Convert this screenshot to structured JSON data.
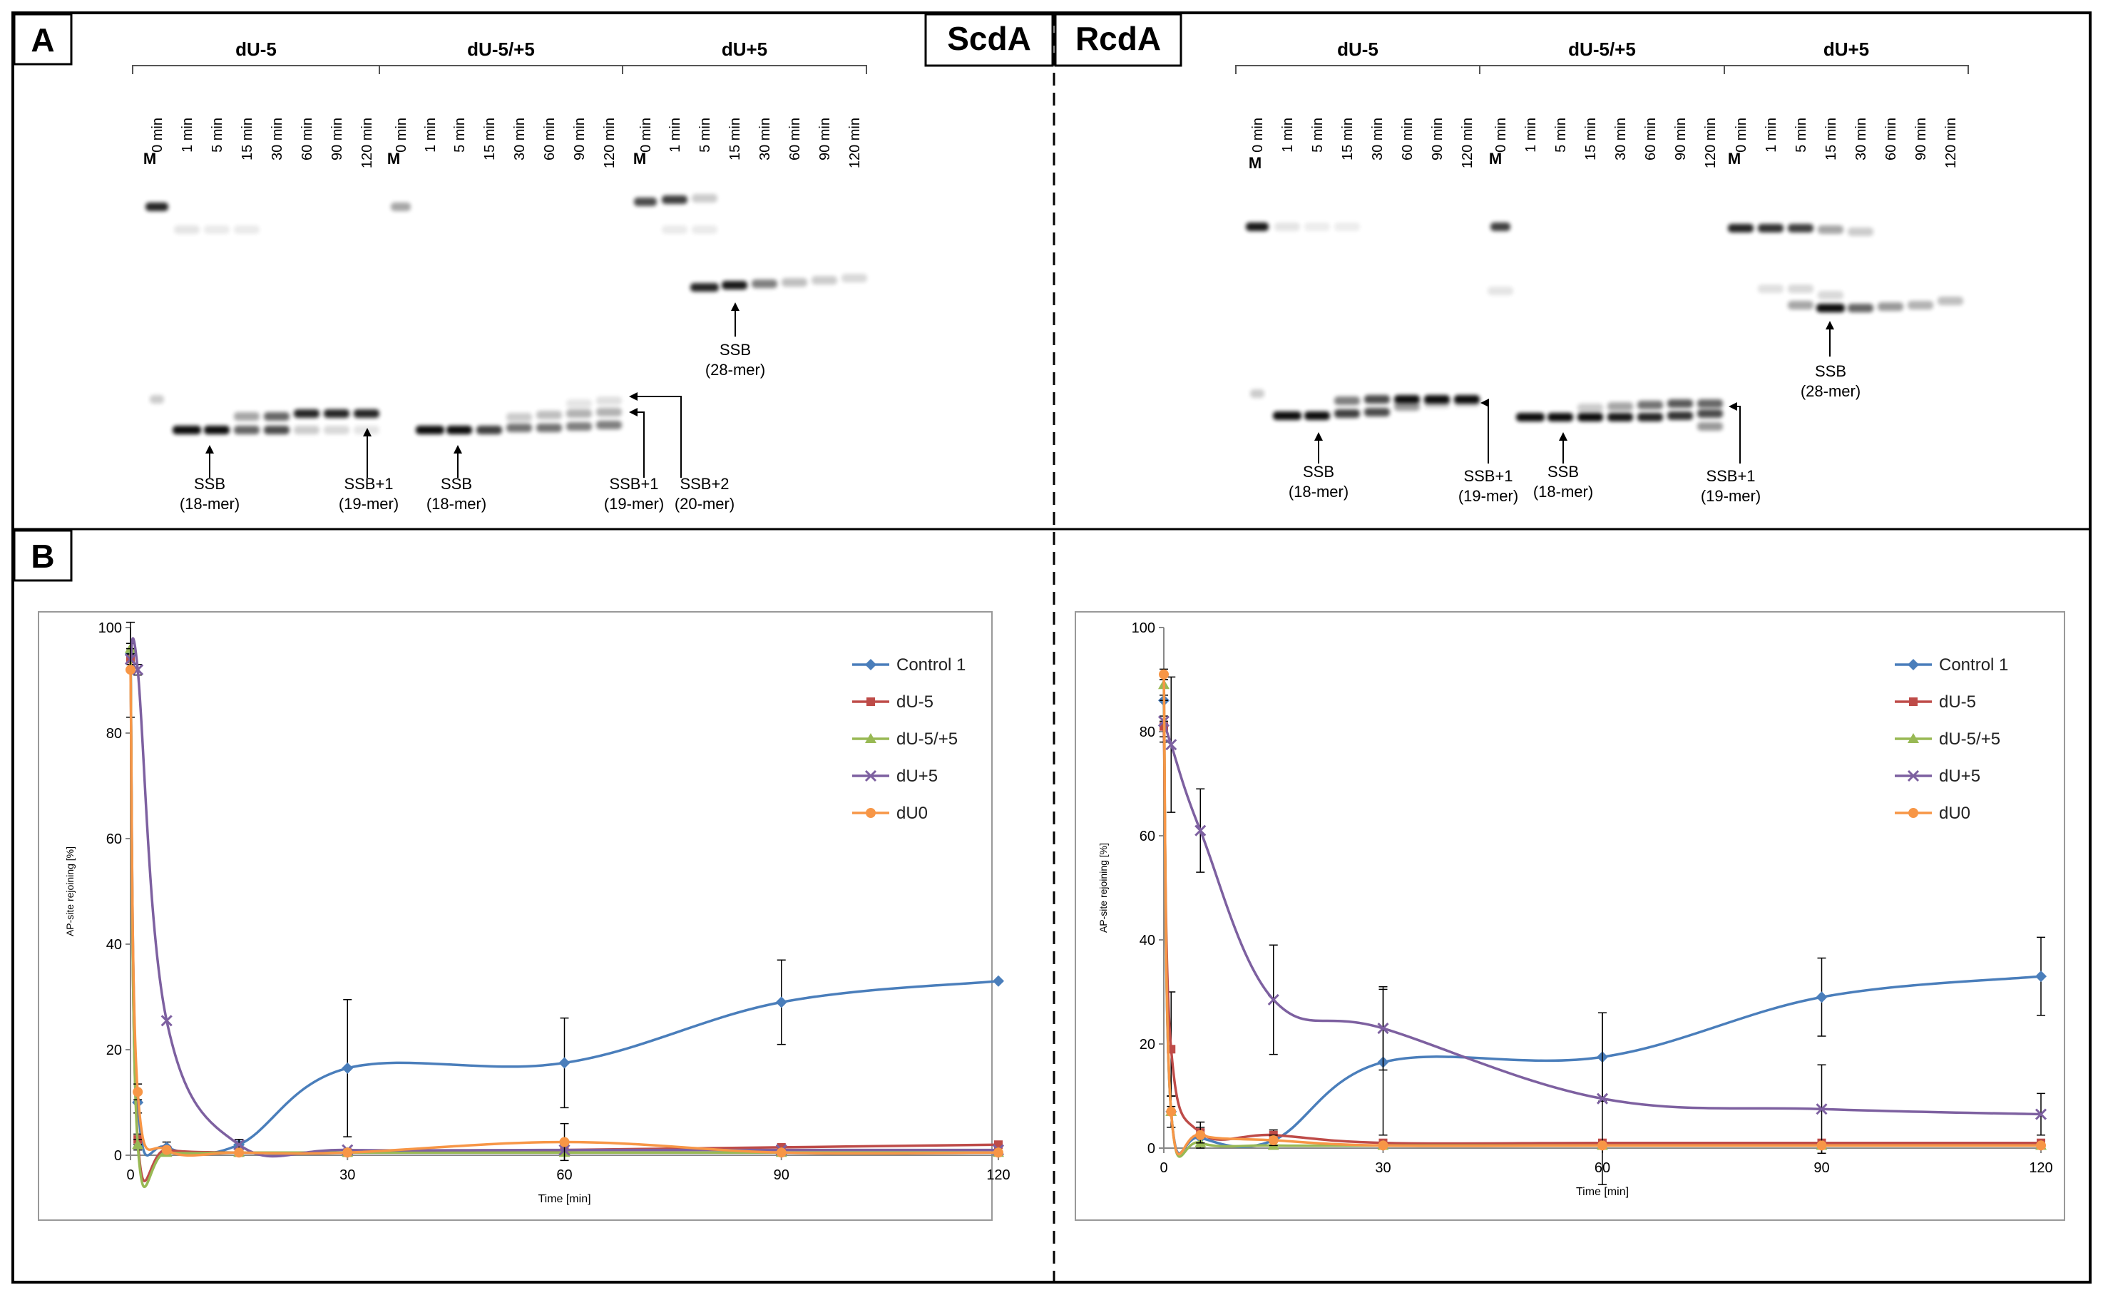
{
  "panel_labels": [
    "A",
    "B"
  ],
  "organisms": [
    "ScdA",
    "RcdA"
  ],
  "gel_groups": [
    "dU-5",
    "dU-5/+5",
    "dU+5"
  ],
  "lane_times": [
    "0 min",
    "1 min",
    "5 min",
    "15 min",
    "30 min",
    "60 min",
    "90 min",
    "120 min"
  ],
  "marker_label": "M",
  "gel_annotations": {
    "ScdA": [
      {
        "line1": "SSB",
        "line2": "(18-mer)"
      },
      {
        "line1": "SSB+1",
        "line2": "(19-mer)"
      },
      {
        "line1": "SSB",
        "line2": "(18-mer)"
      },
      {
        "line1": "SSB+1",
        "line2": "(19-mer)"
      },
      {
        "line1": "SSB+2",
        "line2": "(20-mer)"
      },
      {
        "line1": "SSB",
        "line2": "(28-mer)"
      }
    ],
    "RcdA": [
      {
        "line1": "SSB",
        "line2": "(18-mer)"
      },
      {
        "line1": "SSB+1",
        "line2": "(19-mer)"
      },
      {
        "line1": "SSB",
        "line2": "(18-mer)"
      },
      {
        "line1": "SSB+1",
        "line2": "(19-mer)"
      },
      {
        "line1": "SSB",
        "line2": "(28-mer)"
      }
    ]
  },
  "colors": {
    "Control 1": "#4a7ebb",
    "dU-5": "#be4b48",
    "dU-5/+5": "#98b954",
    "dU+5": "#7d60a0",
    "dU0": "#f79646"
  },
  "chart_data": [
    {
      "type": "line",
      "panel": "B",
      "organism": "ScdA",
      "xlabel": "Time [min]",
      "ylabel": "AP-site rejoining [%]",
      "xlim": [
        0,
        120
      ],
      "ylim": [
        0,
        100
      ],
      "xticks": [
        0,
        30,
        60,
        90,
        120
      ],
      "yticks": [
        0,
        20,
        40,
        60,
        80,
        100
      ],
      "grid": false,
      "legend": "top-right",
      "x": [
        0,
        1,
        5,
        15,
        30,
        60,
        90,
        120
      ],
      "series": [
        {
          "name": "Control 1",
          "values": [
            95,
            10,
            1.5,
            2,
            16.5,
            17.5,
            29,
            33
          ],
          "errors": [
            1,
            2,
            1,
            1,
            13,
            8.5,
            8,
            0
          ]
        },
        {
          "name": "dU-5",
          "values": [
            94,
            3,
            1,
            0.5,
            0.5,
            1,
            1.5,
            2
          ],
          "errors": [
            1,
            1,
            0.5,
            0.5,
            0.5,
            0.5,
            0.5,
            0.5
          ]
        },
        {
          "name": "dU-5/+5",
          "values": [
            96,
            2,
            0.5,
            0.5,
            0.5,
            0.5,
            0.5,
            0.5
          ],
          "errors": [
            1,
            1,
            0.5,
            0.5,
            0.5,
            0.5,
            0.5,
            0.5
          ]
        },
        {
          "name": "dU+5",
          "values": [
            94,
            92,
            25.5,
            2,
            1,
            1,
            1,
            1
          ],
          "errors": [
            2,
            1,
            0.5,
            1,
            0.5,
            0.5,
            0.5,
            0.5
          ]
        },
        {
          "name": "dU0",
          "values": [
            92,
            12,
            1,
            0.5,
            0.5,
            2.5,
            0.5,
            0.5
          ],
          "errors": [
            9,
            1.5,
            0.5,
            0.5,
            0.5,
            3.5,
            0.5,
            0.5
          ]
        }
      ]
    },
    {
      "type": "line",
      "panel": "B",
      "organism": "RcdA",
      "xlabel": "Time [min]",
      "ylabel": "AP-site rejoining [%]",
      "xlim": [
        0,
        120
      ],
      "ylim": [
        0,
        100
      ],
      "xticks": [
        0,
        30,
        60,
        90,
        120
      ],
      "yticks": [
        0,
        20,
        40,
        60,
        80,
        100
      ],
      "grid": false,
      "legend": "top-right",
      "x": [
        0,
        1,
        5,
        15,
        30,
        60,
        90,
        120
      ],
      "series": [
        {
          "name": "Control 1",
          "values": [
            86,
            7,
            2,
            1.5,
            16.5,
            17.5,
            29,
            33
          ],
          "errors": [
            4,
            3,
            1.5,
            1,
            14,
            8.5,
            7.5,
            7.5
          ]
        },
        {
          "name": "dU-5",
          "values": [
            81,
            19,
            3,
            2.5,
            1,
            1,
            1,
            1
          ],
          "errors": [
            2,
            11,
            2,
            1,
            0.5,
            0.5,
            0.5,
            0.5
          ]
        },
        {
          "name": "dU-5/+5",
          "values": [
            89,
            7,
            1,
            0.5,
            0.5,
            0.5,
            0.5,
            0.5
          ],
          "errors": [
            2,
            3,
            1,
            0.5,
            0.5,
            0.5,
            0.5,
            0.5
          ]
        },
        {
          "name": "dU+5",
          "values": [
            82,
            77.5,
            61,
            28.5,
            23,
            9.5,
            7.5,
            6.5
          ],
          "errors": [
            4,
            13,
            8,
            10.5,
            8,
            16.5,
            8.5,
            4
          ]
        },
        {
          "name": "dU0",
          "values": [
            91,
            7,
            2.5,
            1.5,
            0.5,
            0.5,
            0.5,
            0.5
          ],
          "errors": [
            1,
            3,
            1.5,
            1,
            0.5,
            0.5,
            0.5,
            0.5
          ]
        }
      ]
    }
  ]
}
